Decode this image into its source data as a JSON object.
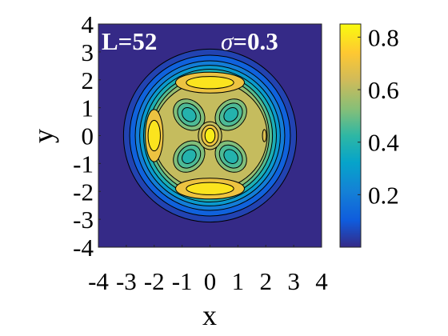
{
  "chart_data": {
    "type": "heatmap",
    "title": "",
    "panel_label": {
      "left": "L=52",
      "sigma_symbol": "σ",
      "sigma_value": "=0.3"
    },
    "xlabel": "x",
    "ylabel": "y",
    "xlim": [
      -4,
      4
    ],
    "ylim": [
      -4,
      4
    ],
    "x_ticks": [
      "-4",
      "-3",
      "-2",
      "-1",
      "0",
      "1",
      "2",
      "3",
      "4"
    ],
    "y_ticks": [
      "4",
      "3",
      "2",
      "1",
      "0",
      "-1",
      "-2",
      "-3",
      "-4"
    ],
    "colorbar": {
      "colormap": "parula",
      "range": [
        0,
        0.85
      ],
      "ticks": [
        "0.8",
        "0.6",
        "0.4",
        "0.2"
      ],
      "tick_values": [
        0.8,
        0.6,
        0.4,
        0.2
      ]
    },
    "contours": "black filled contours",
    "grid": false,
    "features": {
      "disk_radius": 3.1,
      "peaks": [
        {
          "x": 0,
          "y": 0,
          "value": 0.82
        },
        {
          "x": 0,
          "y": 1.9,
          "value": 0.8
        },
        {
          "x": 0,
          "y": -1.9,
          "value": 0.8
        },
        {
          "x": -2.0,
          "y": 0,
          "value": 0.8
        }
      ],
      "minima": [
        {
          "x": 0.75,
          "y": 0.75,
          "value": 0.4
        },
        {
          "x": -0.75,
          "y": 0.75,
          "value": 0.4
        },
        {
          "x": 0.75,
          "y": -0.75,
          "value": 0.4
        },
        {
          "x": -0.75,
          "y": -0.75,
          "value": 0.4
        }
      ]
    }
  }
}
